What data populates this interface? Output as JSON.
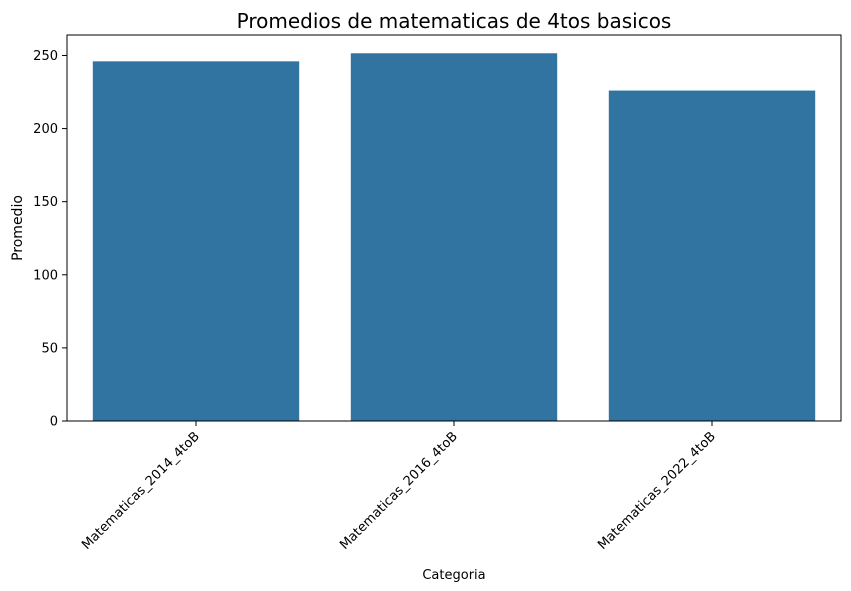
{
  "chart_data": {
    "type": "bar",
    "title": "Promedios de matematicas de 4tos basicos",
    "xlabel": "Categoria",
    "ylabel": "Promedio",
    "categories": [
      "Matematicas_2014_4toB",
      "Matematicas_2016_4toB",
      "Matematicas_2022_4toB"
    ],
    "values": [
      246,
      251.5,
      226
    ],
    "ylim": [
      0,
      264
    ],
    "yticks": [
      0,
      50,
      100,
      150,
      200,
      250
    ],
    "grid": false,
    "bar_color": "#3274a1"
  }
}
